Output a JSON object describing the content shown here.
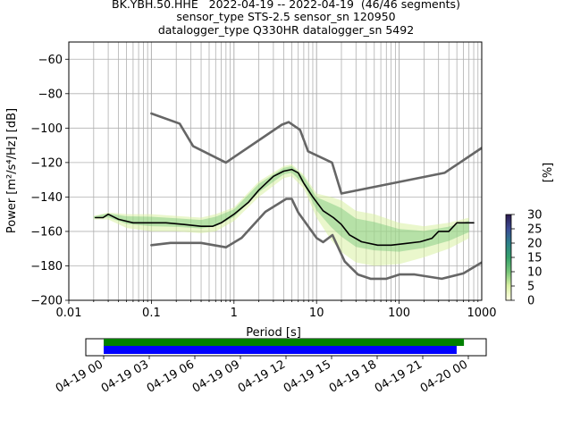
{
  "title_lines": [
    "BK.YBH.50.HHE   2022-04-19 -- 2022-04-19  (46/46 segments)",
    "sensor_type STS-2.5 sensor_sn 120950",
    "datalogger_type Q330HR datalogger_sn 5492"
  ],
  "chart_data": {
    "type": "heatmap",
    "xlabel": "Period [s]",
    "ylabel": "Power [m²/s⁴/Hz] [dB]",
    "x_scale": "log",
    "xlim": [
      0.01,
      1000
    ],
    "ylim": [
      -200,
      -50
    ],
    "x_ticks": [
      0.01,
      0.1,
      1,
      10,
      100,
      1000
    ],
    "x_tick_labels": [
      "0.01",
      "0.1",
      "1",
      "10",
      "100",
      "1000"
    ],
    "y_ticks": [
      -200,
      -180,
      -160,
      -140,
      -120,
      -100,
      -80,
      -60
    ],
    "y_tick_labels": [
      "−200",
      "−180",
      "−160",
      "−140",
      "−120",
      "−100",
      "−80",
      "−60"
    ],
    "grid": true,
    "series": [
      {
        "name": "",
        "role": "mode",
        "color": "#000000",
        "points": [
          [
            0.021,
            -152
          ],
          [
            0.026,
            -152
          ],
          [
            0.03,
            -150
          ],
          [
            0.04,
            -153
          ],
          [
            0.06,
            -155
          ],
          [
            0.1,
            -155
          ],
          [
            0.15,
            -155
          ],
          [
            0.25,
            -156
          ],
          [
            0.4,
            -157
          ],
          [
            0.55,
            -157
          ],
          [
            0.7,
            -155
          ],
          [
            1,
            -150
          ],
          [
            1.5,
            -143
          ],
          [
            2,
            -136
          ],
          [
            3,
            -128
          ],
          [
            4,
            -125
          ],
          [
            5,
            -124
          ],
          [
            6,
            -126
          ],
          [
            7,
            -132
          ],
          [
            9,
            -140
          ],
          [
            12,
            -148
          ],
          [
            16,
            -152
          ],
          [
            20,
            -156
          ],
          [
            25,
            -162
          ],
          [
            35,
            -166
          ],
          [
            55,
            -168
          ],
          [
            80,
            -168
          ],
          [
            120,
            -167
          ],
          [
            180,
            -166
          ],
          [
            250,
            -164
          ],
          [
            300,
            -160
          ],
          [
            400,
            -160
          ],
          [
            500,
            -155
          ],
          [
            800,
            -155
          ]
        ]
      },
      {
        "name": "",
        "role": "noise_model_high",
        "color": "#666666",
        "points": [
          [
            0.1,
            -91.5
          ],
          [
            0.22,
            -97.4
          ],
          [
            0.32,
            -110.5
          ],
          [
            0.8,
            -120
          ],
          [
            3.8,
            -98
          ],
          [
            4.6,
            -96.5
          ],
          [
            6.3,
            -101
          ],
          [
            7.9,
            -113.5
          ],
          [
            15.4,
            -120
          ],
          [
            20,
            -138
          ],
          [
            354.8,
            -126
          ],
          [
            1000,
            -111.5
          ]
        ]
      },
      {
        "name": "",
        "role": "noise_model_low",
        "color": "#666666",
        "points": [
          [
            0.1,
            -168
          ],
          [
            0.17,
            -166.7
          ],
          [
            0.4,
            -166.7
          ],
          [
            0.8,
            -169.2
          ],
          [
            1.24,
            -163.7
          ],
          [
            2.4,
            -148.6
          ],
          [
            4.3,
            -141.1
          ],
          [
            5,
            -141.1
          ],
          [
            6,
            -149
          ],
          [
            10,
            -163.8
          ],
          [
            12,
            -166.2
          ],
          [
            15.6,
            -162.1
          ],
          [
            21.9,
            -177.5
          ],
          [
            31.6,
            -185
          ],
          [
            45,
            -187.5
          ],
          [
            70,
            -187.5
          ],
          [
            101,
            -185
          ],
          [
            154,
            -185
          ],
          [
            328,
            -187.5
          ],
          [
            600,
            -184.4
          ],
          [
            1000,
            -178
          ]
        ]
      }
    ],
    "density_band": {
      "x": [
        0.02,
        0.03,
        0.05,
        0.1,
        0.2,
        0.4,
        0.6,
        1,
        2,
        4,
        5,
        7,
        10,
        15,
        20,
        30,
        50,
        100,
        200,
        400,
        700
      ],
      "low": [
        -153,
        -153,
        -158,
        -160,
        -160,
        -161,
        -160,
        -154,
        -140,
        -129,
        -128,
        -135,
        -152,
        -165,
        -172,
        -178,
        -180,
        -179,
        -175,
        -170,
        -164
      ],
      "high": [
        -151,
        -149,
        -150,
        -150,
        -151,
        -152,
        -150,
        -146,
        -131,
        -122,
        -121,
        -127,
        -138,
        -140,
        -142,
        -148,
        -150,
        -155,
        -157,
        -155,
        -152
      ]
    },
    "colorbar": {
      "label": "[%]",
      "range": [
        0,
        30
      ],
      "ticks": [
        0,
        5,
        10,
        15,
        20,
        25,
        30
      ],
      "tick_labels": [
        "0",
        "5",
        "10",
        "15",
        "20",
        "25",
        "30"
      ]
    },
    "timeline": {
      "tick_labels": [
        "04-19 00",
        "04-19 03",
        "04-19 06",
        "04-19 09",
        "04-19 12",
        "04-19 15",
        "04-19 18",
        "04-19 21",
        "04-20 00"
      ],
      "data_coverage": [
        0,
        0.988
      ],
      "psd_coverage": [
        0,
        0.968
      ],
      "data_color": "#008000",
      "psd_color": "#0000ff"
    }
  }
}
